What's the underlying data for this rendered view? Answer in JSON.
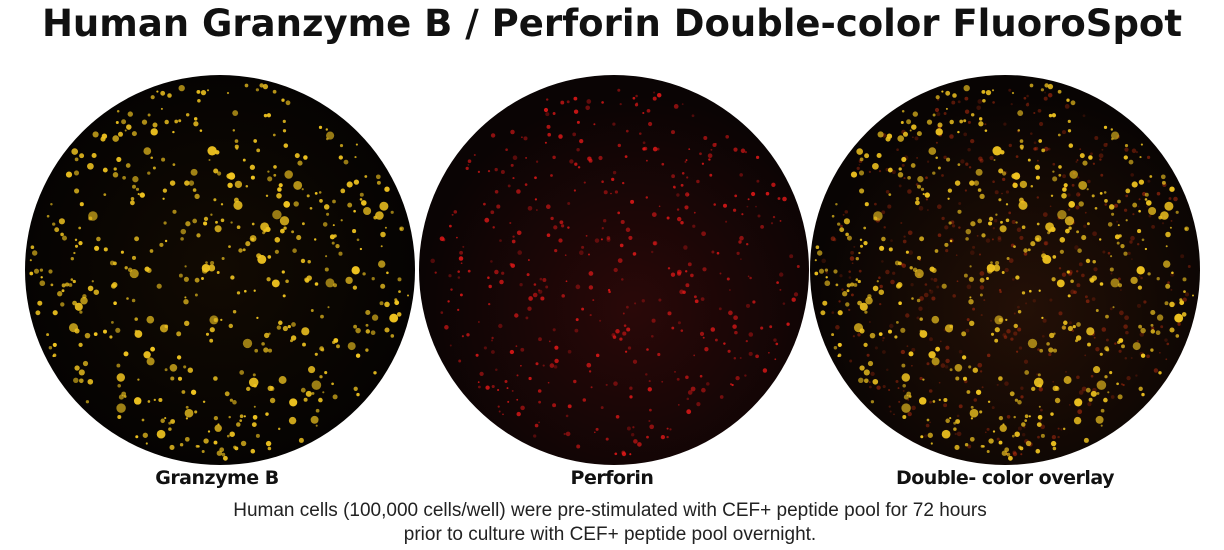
{
  "title": "Human Granzyme B / Perforin Double-color FluoroSpot",
  "panels": [
    {
      "label": "Granzyme B"
    },
    {
      "label": "Perforin"
    },
    {
      "label": "Double- color overlay"
    }
  ],
  "caption": {
    "lines": [
      "Human cells (100,000 cells/well) were pre-stimulated with CEF+ peptide pool for 72 hours",
      "prior to culture with CEF+ peptide pool overnight."
    ]
  }
}
